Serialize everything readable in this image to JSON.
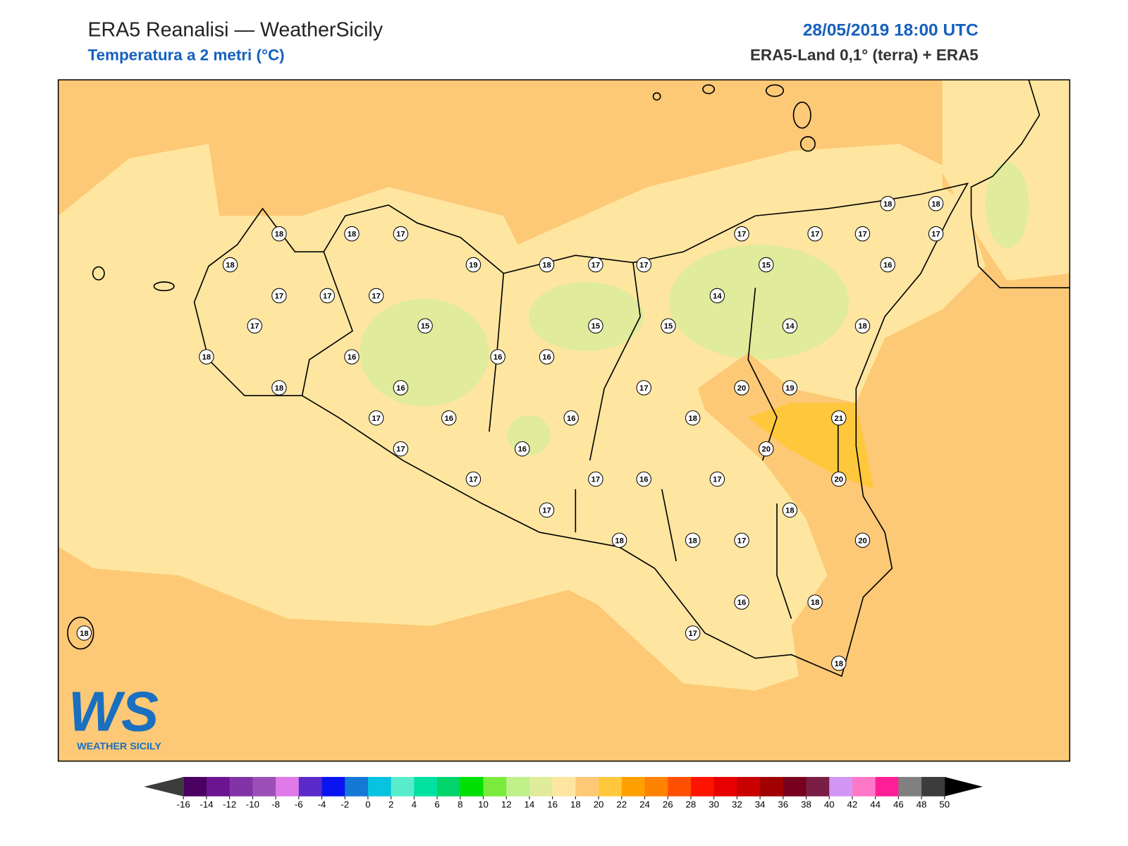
{
  "header": {
    "title": "ERA5 Reanalisi — WeatherSicily",
    "subtitle": "Temperatura a 2 metri (°C)",
    "datetime": "28/05/2019 18:00 UTC",
    "source": "ERA5-Land 0,1° (terra) + ERA5"
  },
  "stations": [
    18,
    18,
    17,
    18,
    19,
    18,
    17,
    17,
    17,
    17,
    17,
    17,
    15,
    15,
    15,
    14,
    15,
    17,
    17,
    17,
    17,
    18,
    18,
    16,
    14,
    18,
    18,
    16,
    16,
    16,
    16,
    18,
    17,
    20,
    19,
    17,
    16,
    16,
    18,
    21,
    17,
    16,
    20,
    17,
    17,
    16,
    17,
    20,
    17,
    18,
    18,
    18,
    17,
    20,
    16,
    18,
    17,
    18,
    18
  ],
  "colorbar": {
    "ticks": [
      -16,
      -14,
      -12,
      -10,
      -8,
      -6,
      -4,
      -2,
      0,
      2,
      4,
      6,
      8,
      10,
      12,
      14,
      16,
      18,
      20,
      22,
      24,
      26,
      28,
      30,
      32,
      34,
      36,
      38,
      40,
      42,
      44,
      46,
      48,
      50
    ],
    "colors": [
      "#4a0060",
      "#6b1591",
      "#8233a6",
      "#9c4fb8",
      "#e07ae8",
      "#5b2bc9",
      "#0a14f0",
      "#1478d4",
      "#06c3e0",
      "#58eccc",
      "#00e0a0",
      "#00d46a",
      "#00e000",
      "#7aeb3c",
      "#c0f08a",
      "#e0eb9b",
      "#ffe6a0",
      "#fdc976",
      "#ffc83c",
      "#ffa000",
      "#ff8200",
      "#ff5000",
      "#ff1400",
      "#e60000",
      "#c80000",
      "#a00000",
      "#78001e",
      "#7a1e46",
      "#d296f5",
      "#ff78c8",
      "#ff1e96",
      "#808080",
      "#3c3c3c"
    ],
    "under_color": "#3c3c3c",
    "over_color": "#000000"
  },
  "logo": {
    "mark": "WS",
    "name": "WEATHER SICILY"
  }
}
